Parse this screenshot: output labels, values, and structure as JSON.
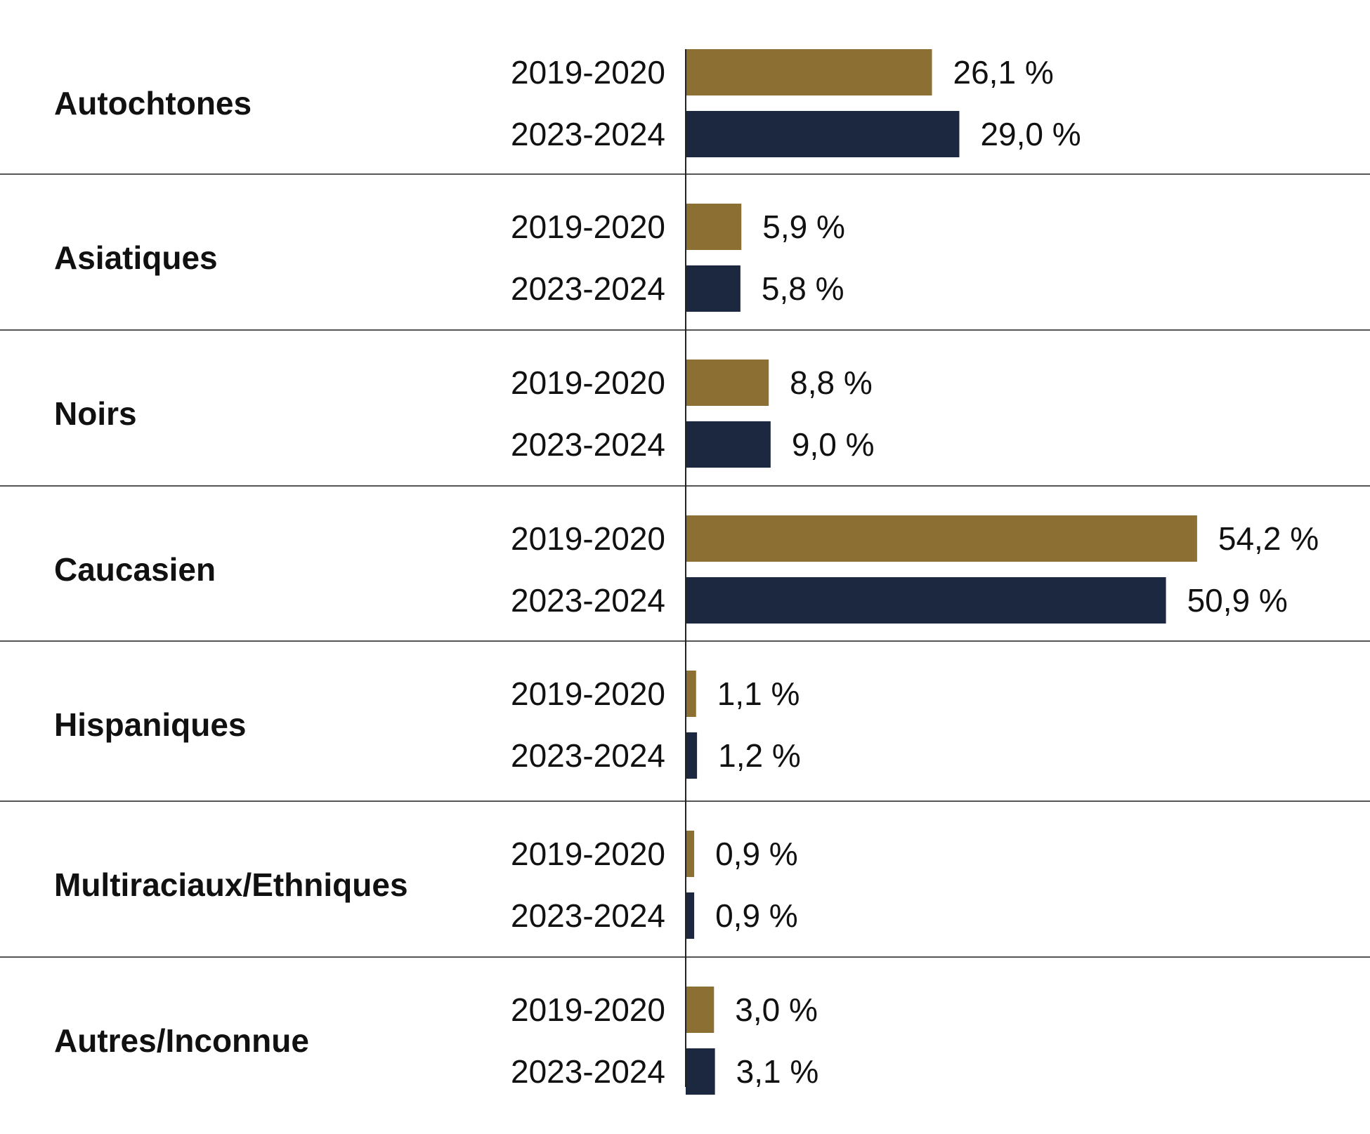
{
  "chart_data": {
    "type": "bar",
    "orientation": "horizontal",
    "categories": [
      "Autochtones",
      "Asiatiques",
      "Noirs",
      "Caucasien",
      "Hispaniques",
      "Multiraciaux/Ethniques",
      "Autres/Inconnue"
    ],
    "series": [
      {
        "name": "2019-2020",
        "color": "#8B6F33",
        "values": [
          26.1,
          5.9,
          8.8,
          54.2,
          1.1,
          0.9,
          3.0
        ],
        "labels": [
          "26,1 %",
          "5,9 %",
          "8,8 %",
          "54,2 %",
          "1,1 %",
          "0,9 %",
          "3,0 %"
        ]
      },
      {
        "name": "2023-2024",
        "color": "#1B2840",
        "values": [
          29.0,
          5.8,
          9.0,
          50.9,
          1.2,
          0.9,
          3.1
        ],
        "labels": [
          "29,0 %",
          "5,8 %",
          "9,0 %",
          "50,9 %",
          "1,2 %",
          "0,9 %",
          "3,1 %"
        ]
      }
    ],
    "xlim": [
      0,
      54.2
    ],
    "grid": false,
    "legend": "none"
  }
}
